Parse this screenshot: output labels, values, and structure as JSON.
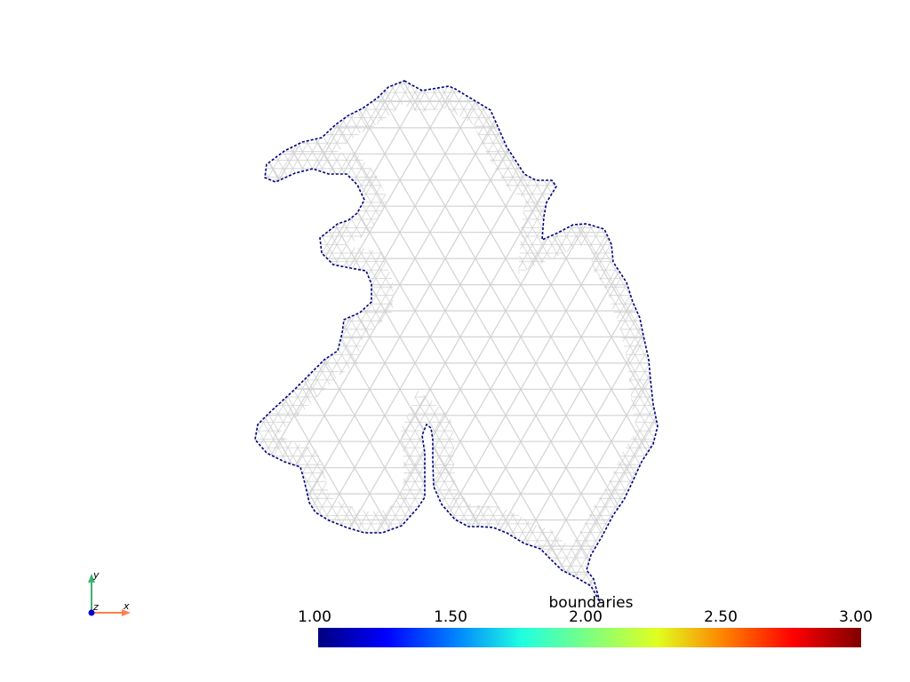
{
  "scalar_bar": {
    "title": "boundaries",
    "range": [
      1.0,
      3.0
    ],
    "labels": [
      "1.00",
      "1.50",
      "2.00",
      "2.50",
      "3.00"
    ],
    "colormap": "jet",
    "colors": [
      "#00007f",
      "#0000ff",
      "#007fff",
      "#1fffe0",
      "#7fff7f",
      "#e0ff1f",
      "#ff7f00",
      "#ff0000",
      "#7f0000"
    ]
  },
  "mesh": {
    "edge_color": "#d3d3d3",
    "boundary_color": "#00007f",
    "boundary_value": 1.0
  },
  "axes_widget": {
    "x_label": "x",
    "y_label": "y",
    "z_label": "z",
    "x_color": "#ff7f50",
    "y_color": "#3cb371",
    "z_color": "#0000cd"
  }
}
